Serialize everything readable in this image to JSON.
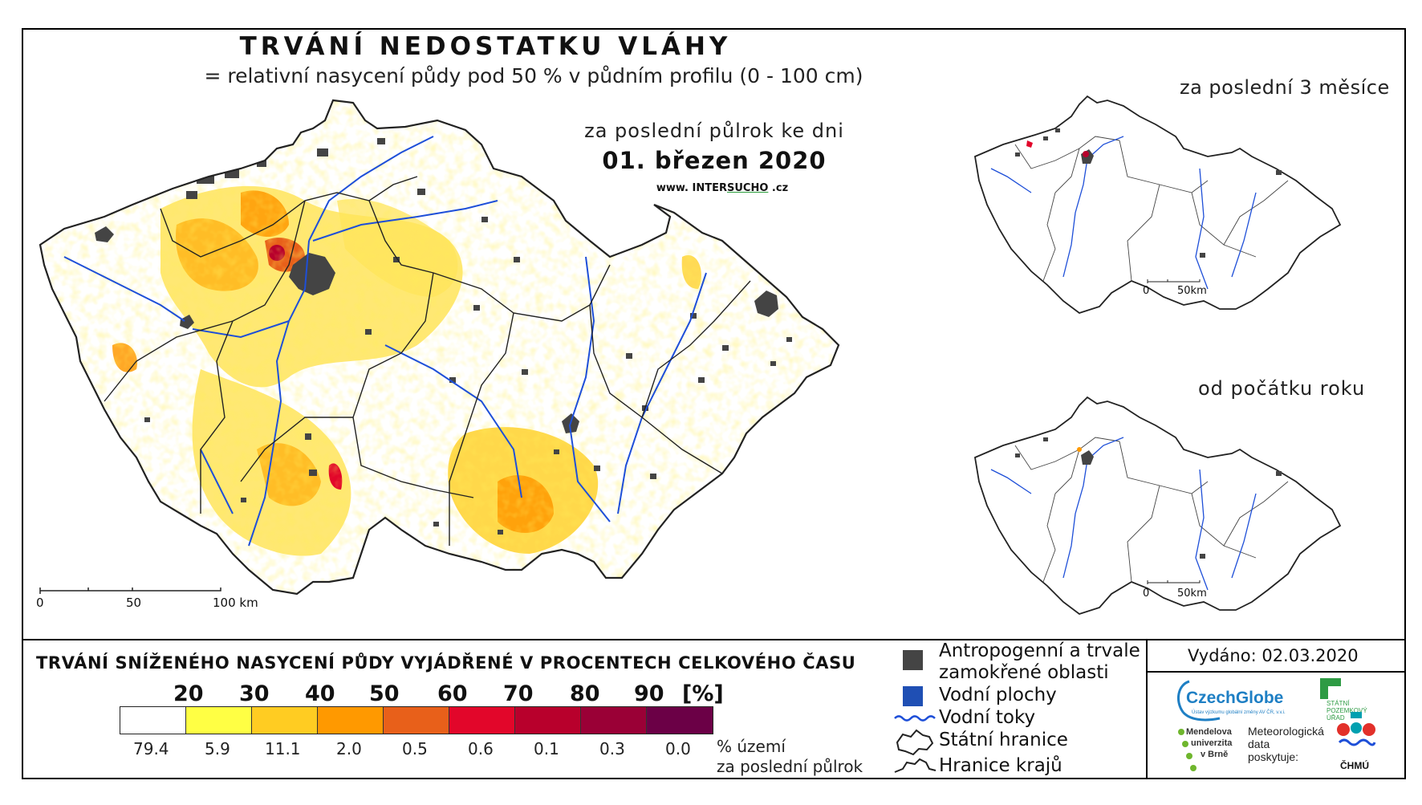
{
  "header": {
    "title": "TRVÁNÍ NEDOSTATKU VLÁHY",
    "subtitle": "= relativní nasycení půdy pod 50 % v půdním profilu (0 - 100 cm)",
    "period": "za poslední půlrok ke dni",
    "date": "01. březen 2020",
    "web_prefix": "www.",
    "web_a": "INTER",
    "web_b": "SUCHO",
    "web_suffix": ".cz"
  },
  "main_map": {
    "scale": {
      "label_0": "0",
      "label_50": "50",
      "label_100": "100 km"
    }
  },
  "insets": [
    {
      "title": "za poslední 3 měsíce",
      "scale_0": "0",
      "scale_50": "50km"
    },
    {
      "title": "od počátku roku",
      "scale_0": "0",
      "scale_50": "50km"
    }
  ],
  "legend": {
    "title": "TRVÁNÍ SNÍŽENÉHO NASYCENÍ PŮDY VYJÁDŘENÉ V PROCENTECH CELKOVÉHO ČASU",
    "class_labels": [
      "20",
      "30",
      "40",
      "50",
      "60",
      "70",
      "80",
      "90",
      "[%]"
    ],
    "colors": [
      "#ffffff",
      "#ffff44",
      "#ffcc22",
      "#ff9900",
      "#e8601a",
      "#e2062a",
      "#b8002c",
      "#9a0036",
      "#6b0046"
    ],
    "area_percent": [
      "79.4",
      "5.9",
      "11.1",
      "2.0",
      "0.5",
      "0.6",
      "0.1",
      "0.3",
      "0.0"
    ],
    "area_note_1": "% území",
    "area_note_2": "za poslední půlrok"
  },
  "symbols": {
    "anthropogenic_1": "Antropogenní a trvale",
    "anthropogenic_2": "zamokřené oblasti",
    "water_bodies": "Vodní plochy",
    "rivers": "Vodní toky",
    "state_border": "Státní hranice",
    "regional_border": "Hranice krajů"
  },
  "issued": "Vydáno: 02.03.2020",
  "logos": {
    "czechglobe": "CzechGlobe",
    "czechglobe_sub": "Ústav výzkumu globální změny AV ČR, v.v.i.",
    "spu_1": "STÁTNÍ",
    "spu_2": "POZEMKOVÝ",
    "spu_3": "ÚŘAD",
    "mendel_1": "Mendelova",
    "mendel_2": "univerzita",
    "mendel_3": "v Brně",
    "meteo_1": "Meteorologická",
    "meteo_2": "data",
    "meteo_3": "poskytuje:",
    "chmu": "ČHMÚ"
  },
  "colors": {
    "anthropogenic": "#444444",
    "water": "#1f4fb4",
    "river": "#1e4fd8"
  }
}
